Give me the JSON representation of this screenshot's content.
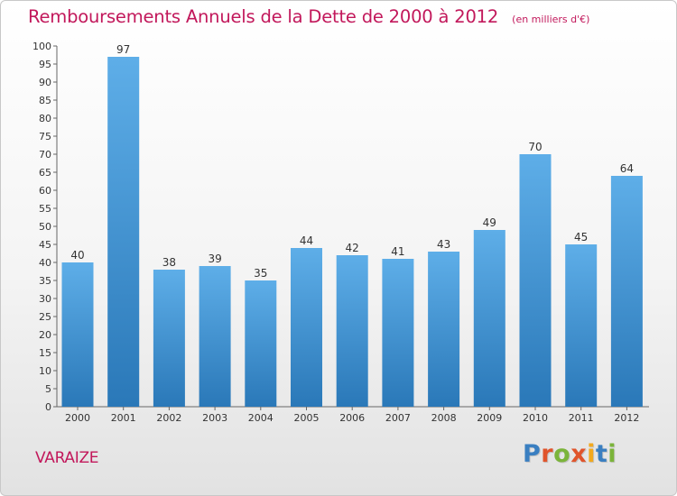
{
  "title": "Remboursements Annuels de la Dette de 2000 à 2012",
  "subtitle": "(en milliers d'€)",
  "place_name": "VARAIZE",
  "logo": {
    "text": "Proxiti",
    "letter_colors": [
      "#3a7fc1",
      "#e0542b",
      "#7bb43a",
      "#e0542b",
      "#f2a91e",
      "#3a7fc1",
      "#7bb43a"
    ]
  },
  "colors": {
    "bar_top": "#5eaee8",
    "bar_bottom": "#2a78b8",
    "title": "#c2185b"
  },
  "chart_data": {
    "type": "bar",
    "categories": [
      "2000",
      "2001",
      "2002",
      "2003",
      "2004",
      "2005",
      "2006",
      "2007",
      "2008",
      "2009",
      "2010",
      "2011",
      "2012"
    ],
    "values": [
      40,
      97,
      38,
      39,
      35,
      44,
      42,
      41,
      43,
      49,
      70,
      45,
      64
    ],
    "ylim": [
      0,
      100
    ],
    "ytick_step": 5,
    "grid": false,
    "legend": "none"
  }
}
